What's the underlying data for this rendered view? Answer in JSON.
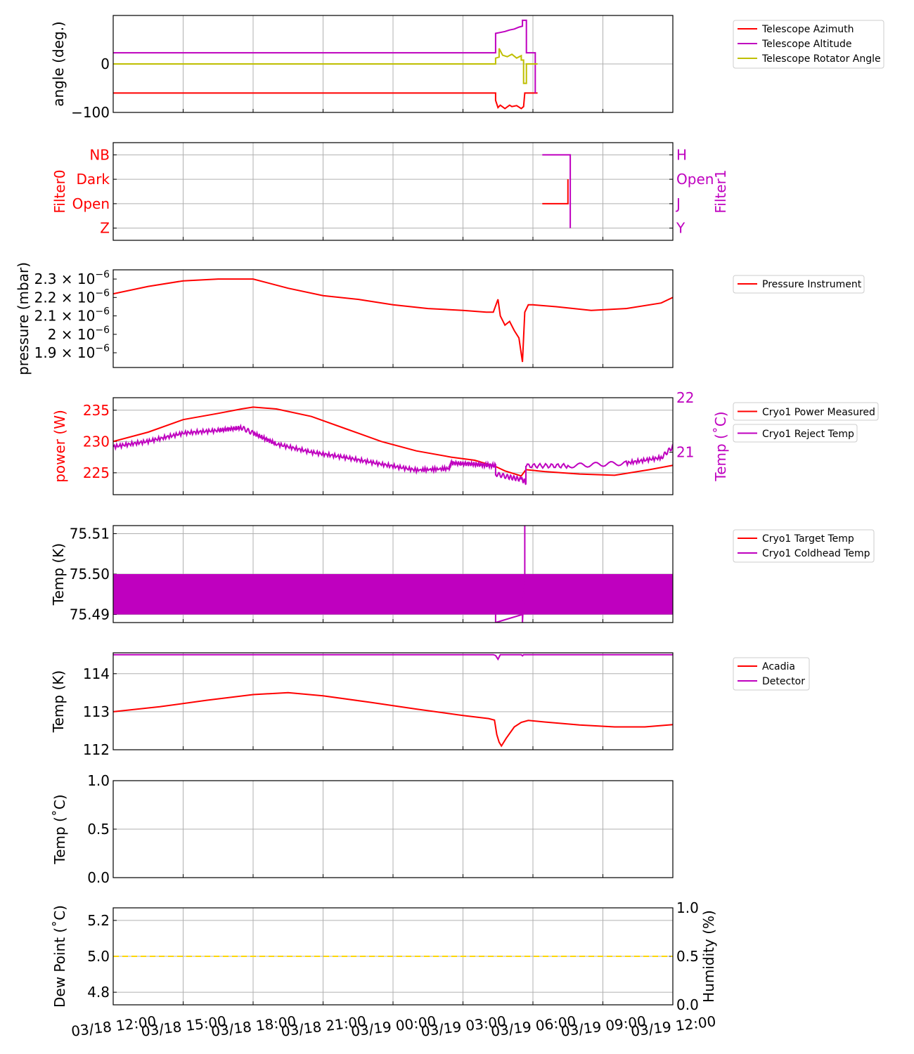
{
  "colors": {
    "red": "#ff0000",
    "magenta": "#bf00bf",
    "olive": "#bfbf00",
    "gold": "#ffd700",
    "grid": "#b0b0b0"
  },
  "x_axis": {
    "tick_labels": [
      "03/18 12:00",
      "03/18 15:00",
      "03/18 18:00",
      "03/18 21:00",
      "03/19 00:00",
      "03/19 03:00",
      "03/19 06:00",
      "03/19 09:00",
      "03/19 12:00"
    ],
    "range_hours": [
      0,
      24
    ]
  },
  "chart_data": [
    {
      "id": "angles",
      "type": "line",
      "ylabel": "angle (deg.)",
      "ylim": [
        -100,
        100
      ],
      "yticks": [
        {
          "v": -100,
          "label": "−100"
        },
        {
          "v": 0,
          "label": "0"
        }
      ],
      "series": [
        {
          "name": "Telescope Azimuth",
          "color": "red",
          "x": [
            0,
            16.4,
            16.4,
            16.5,
            16.6,
            16.8,
            17.0,
            17.1,
            17.3,
            17.5,
            17.6,
            17.65,
            17.65,
            18.0,
            18.0,
            18.2
          ],
          "y": [
            -60,
            -60,
            -75,
            -90,
            -85,
            -92,
            -85,
            -88,
            -86,
            -92,
            -88,
            -60,
            -60,
            -60,
            -60,
            -60
          ]
        },
        {
          "name": "Telescope Altitude",
          "color": "magenta",
          "x": [
            0,
            16.4,
            16.4,
            16.6,
            16.8,
            17.0,
            17.2,
            17.4,
            17.55,
            17.55,
            17.72,
            17.72,
            18.1,
            18.1
          ],
          "y": [
            23,
            23,
            63,
            65,
            67,
            70,
            72,
            76,
            78,
            90,
            90,
            23,
            23,
            -60
          ]
        },
        {
          "name": "Telescope Rotator Angle",
          "color": "olive",
          "x": [
            0,
            16.4,
            16.4,
            16.55,
            16.55,
            16.7,
            16.9,
            17.1,
            17.3,
            17.5,
            17.5,
            17.6,
            17.6,
            17.72,
            17.72,
            17.8,
            17.8,
            18.2
          ],
          "y": [
            0,
            0,
            12,
            14,
            32,
            18,
            15,
            20,
            12,
            17,
            8,
            8,
            -40,
            -40,
            0,
            0,
            0,
            0
          ]
        }
      ]
    },
    {
      "id": "filters",
      "type": "line",
      "ylabel": "Filter0",
      "ylabel_right": "Filter1",
      "ylim": [
        -0.5,
        3.5
      ],
      "left_categories": [
        "Z",
        "Open",
        "Dark",
        "NB"
      ],
      "right_categories": [
        "Y",
        "J",
        "Open",
        "H"
      ],
      "series": [
        {
          "name": "Filter0",
          "color": "red",
          "x": [
            18.4,
            19.5,
            19.5
          ],
          "y": [
            1,
            1,
            2
          ]
        },
        {
          "name": "Filter1",
          "color": "magenta",
          "x": [
            18.4,
            19.6,
            19.6
          ],
          "y": [
            3,
            3,
            0
          ]
        }
      ]
    },
    {
      "id": "pressure",
      "type": "line",
      "ylabel": "pressure (mbar)",
      "ylim": [
        1.82,
        2.35
      ],
      "ytick_mantissas": [
        "2.3",
        "2.2",
        "2.1",
        "2",
        "1.9"
      ],
      "ytick_values": [
        2.3,
        2.2,
        2.1,
        2.0,
        1.9
      ],
      "ytick_exp": "−6",
      "series": [
        {
          "name": "Pressure Instrument",
          "color": "red",
          "x": [
            0,
            1.5,
            3,
            4.5,
            6,
            7.5,
            9,
            10.5,
            12,
            13.5,
            15,
            16.0,
            16.3,
            16.5,
            16.6,
            16.8,
            17.0,
            17.2,
            17.4,
            17.55,
            17.65,
            17.8,
            18.0,
            19,
            20.5,
            22,
            23.5,
            24
          ],
          "y": [
            2.22,
            2.26,
            2.29,
            2.3,
            2.3,
            2.25,
            2.21,
            2.19,
            2.16,
            2.14,
            2.13,
            2.12,
            2.12,
            2.19,
            2.1,
            2.05,
            2.07,
            2.02,
            1.98,
            1.85,
            2.12,
            2.16,
            2.16,
            2.15,
            2.13,
            2.14,
            2.17,
            2.2
          ]
        }
      ]
    },
    {
      "id": "cryo_power",
      "type": "line",
      "ylabel": "power (W)",
      "ylabel_right": "Temp (˚C)",
      "ylim": [
        221.5,
        237.0
      ],
      "yticks": [
        225,
        230,
        235
      ],
      "ylim_right": [
        20.22,
        22.0
      ],
      "yticks_right": [
        21,
        22
      ],
      "series": [
        {
          "name": "Cryo1 Power Measured",
          "color": "red",
          "axis": "left",
          "x": [
            0,
            1.5,
            3,
            4.5,
            5.5,
            6,
            7,
            8.5,
            10,
            11.5,
            13,
            14.5,
            15.5,
            16.4,
            16.8,
            17.5,
            17.7,
            18.5,
            20,
            21.5,
            23,
            24
          ],
          "y": [
            230,
            231.5,
            233.5,
            234.5,
            235.2,
            235.5,
            235.2,
            234,
            232,
            230,
            228.5,
            227.5,
            227,
            226,
            225.3,
            224.5,
            225.5,
            225.2,
            224.8,
            224.6,
            225.5,
            226.2
          ]
        },
        {
          "name": "Cryo1 Reject Temp",
          "color": "magenta",
          "axis": "right",
          "x": [
            0,
            1.5,
            3,
            4.5,
            5.5,
            6,
            7,
            8.5,
            10,
            11.5,
            13,
            14.4,
            14.5,
            15.5,
            16.4,
            16.4,
            16.9,
            17.5,
            17.7,
            17.7,
            19.5,
            22,
            23.5,
            24
          ],
          "y": [
            21.1,
            21.2,
            21.35,
            21.4,
            21.45,
            21.35,
            21.15,
            21.0,
            20.9,
            20.78,
            20.67,
            20.7,
            20.8,
            20.78,
            20.75,
            20.6,
            20.55,
            20.5,
            20.45,
            20.75,
            20.75,
            20.8,
            20.9,
            21.1
          ],
          "noise_amp": 0.04
        }
      ]
    },
    {
      "id": "cryo_temp",
      "type": "line",
      "ylabel": "Temp (K)",
      "ylim": [
        75.488,
        75.512
      ],
      "yticks": [
        {
          "v": 75.49,
          "label": "75.49"
        },
        {
          "v": 75.5,
          "label": "75.50"
        },
        {
          "v": 75.51,
          "label": "75.51"
        }
      ],
      "band": [
        75.49,
        75.5
      ],
      "series": [
        {
          "name": "Cryo1 Target Temp",
          "color": "red",
          "x": [],
          "y": []
        },
        {
          "name": "Cryo1 Coldhead Temp",
          "color": "magenta",
          "x": [
            16.4,
            16.4,
            17.55,
            17.55,
            17.65,
            17.65
          ],
          "y": [
            75.49,
            75.488,
            75.49,
            75.488,
            75.5,
            75.512
          ]
        }
      ]
    },
    {
      "id": "acadia",
      "type": "line",
      "ylabel": "Temp (K)",
      "ylim": [
        112,
        114.55
      ],
      "yticks": [
        112,
        113,
        114
      ],
      "series": [
        {
          "name": "Acadia",
          "color": "red",
          "x": [
            0,
            2,
            4,
            6,
            7.5,
            9,
            11,
            13,
            15,
            16.1,
            16.35,
            16.45,
            16.55,
            16.65,
            16.85,
            17.2,
            17.5,
            17.8,
            18.5,
            20,
            21.5,
            22.8,
            24
          ],
          "y": [
            113.0,
            113.13,
            113.3,
            113.45,
            113.5,
            113.42,
            113.25,
            113.07,
            112.9,
            112.82,
            112.78,
            112.4,
            112.2,
            112.1,
            112.3,
            112.6,
            112.72,
            112.77,
            112.73,
            112.65,
            112.6,
            112.6,
            112.66
          ]
        },
        {
          "name": "Detector",
          "color": "magenta",
          "x": [
            0,
            16.3,
            16.4,
            16.5,
            16.6,
            17.5,
            17.55,
            17.6,
            24
          ],
          "y": [
            114.5,
            114.5,
            114.48,
            114.38,
            114.5,
            114.5,
            114.47,
            114.5,
            114.5
          ]
        }
      ]
    },
    {
      "id": "temp_c",
      "type": "line",
      "ylabel": "Temp (˚C)",
      "ylim": [
        0.0,
        1.0
      ],
      "yticks": [
        {
          "v": 0,
          "label": "0.0"
        },
        {
          "v": 0.5,
          "label": "0.5"
        },
        {
          "v": 1,
          "label": "1.0"
        }
      ],
      "series": []
    },
    {
      "id": "dew",
      "type": "line",
      "ylabel": "Dew Point (˚C)",
      "ylabel_right": "Humidity (%)",
      "ylim": [
        4.73,
        5.27
      ],
      "yticks": [
        {
          "v": 4.8,
          "label": "4.8"
        },
        {
          "v": 5.0,
          "label": "5.0"
        },
        {
          "v": 5.2,
          "label": "5.2"
        }
      ],
      "ylim_right": [
        0.0,
        1.0
      ],
      "yticks_right": [
        {
          "v": 0,
          "label": "0.0"
        },
        {
          "v": 0.5,
          "label": "0.5"
        },
        {
          "v": 1,
          "label": "1.0"
        }
      ],
      "series": [
        {
          "name": "Dew Point",
          "color": "gold",
          "dashed": true,
          "x": [
            0,
            24
          ],
          "y": [
            5.0,
            5.0
          ]
        }
      ]
    }
  ]
}
